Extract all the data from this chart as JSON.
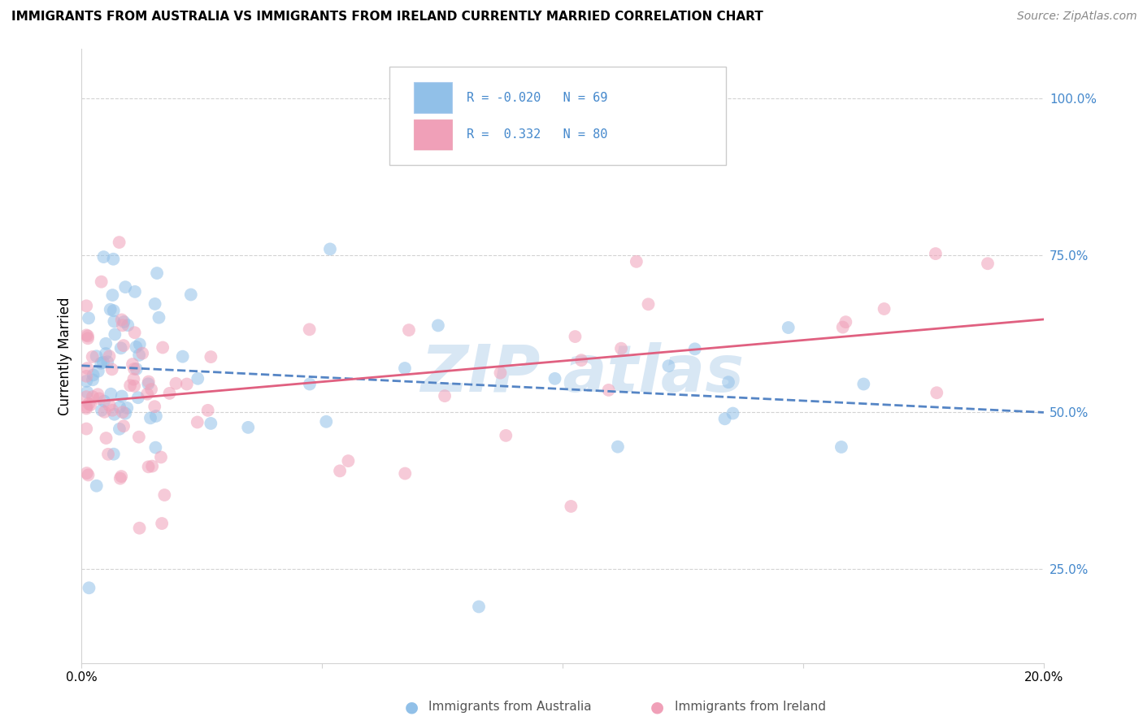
{
  "title": "IMMIGRANTS FROM AUSTRALIA VS IMMIGRANTS FROM IRELAND CURRENTLY MARRIED CORRELATION CHART",
  "source": "Source: ZipAtlas.com",
  "ylabel": "Currently Married",
  "australia_color": "#91c0e8",
  "ireland_color": "#f0a0b8",
  "australia_trend_color": "#5585c5",
  "ireland_trend_color": "#e06080",
  "australia_R": -0.02,
  "australia_N": 69,
  "ireland_R": 0.332,
  "ireland_N": 80,
  "xlim": [
    0.0,
    0.2
  ],
  "ylim": [
    0.1,
    1.08
  ],
  "ytick_vals": [
    0.25,
    0.5,
    0.75,
    1.0
  ],
  "ytick_labels": [
    "25.0%",
    "50.0%",
    "75.0%",
    "100.0%"
  ],
  "xtick_vals": [
    0.0,
    0.05,
    0.1,
    0.15,
    0.2
  ],
  "xtick_labels_show": [
    "0.0%",
    "",
    "",
    "",
    "20.0%"
  ],
  "watermark_text": "ZIP atlas",
  "watermark_color": "#c8ddf0",
  "legend_aus_text": "R = -0.020   N = 69",
  "legend_ire_text": "R =  0.332   N = 80",
  "bottom_legend_aus": "Immigrants from Australia",
  "bottom_legend_ire": "Immigrants from Ireland"
}
